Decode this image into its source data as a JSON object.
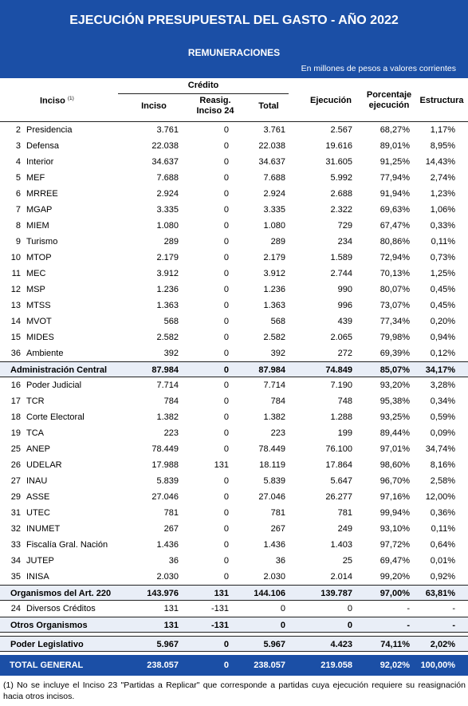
{
  "header": {
    "title": "EJECUCIÓN PRESUPUESTAL DEL GASTO -  AÑO 2022",
    "subtitle": "REMUNERACIONES",
    "note": "En millones de pesos a valores corrientes"
  },
  "columns": {
    "inciso": "Inciso",
    "inciso_sup": "(1)",
    "credito": "Crédito",
    "credito_inciso": "Inciso",
    "reasig_1": "Reasig.",
    "reasig_2": "Inciso 24",
    "total": "Total",
    "ejecucion": "Ejecución",
    "porcentaje_1": "Porcentaje",
    "porcentaje_2": "ejecución",
    "estructura": "Estructura"
  },
  "admin_central": [
    {
      "num": "2",
      "name": "Presidencia",
      "inciso": "3.761",
      "reasig": "0",
      "total": "3.761",
      "ejec": "2.567",
      "pct": "68,27%",
      "estr": "1,17%"
    },
    {
      "num": "3",
      "name": "Defensa",
      "inciso": "22.038",
      "reasig": "0",
      "total": "22.038",
      "ejec": "19.616",
      "pct": "89,01%",
      "estr": "8,95%"
    },
    {
      "num": "4",
      "name": "Interior",
      "inciso": "34.637",
      "reasig": "0",
      "total": "34.637",
      "ejec": "31.605",
      "pct": "91,25%",
      "estr": "14,43%"
    },
    {
      "num": "5",
      "name": "MEF",
      "inciso": "7.688",
      "reasig": "0",
      "total": "7.688",
      "ejec": "5.992",
      "pct": "77,94%",
      "estr": "2,74%"
    },
    {
      "num": "6",
      "name": "MRREE",
      "inciso": "2.924",
      "reasig": "0",
      "total": "2.924",
      "ejec": "2.688",
      "pct": "91,94%",
      "estr": "1,23%"
    },
    {
      "num": "7",
      "name": "MGAP",
      "inciso": "3.335",
      "reasig": "0",
      "total": "3.335",
      "ejec": "2.322",
      "pct": "69,63%",
      "estr": "1,06%"
    },
    {
      "num": "8",
      "name": "MIEM",
      "inciso": "1.080",
      "reasig": "0",
      "total": "1.080",
      "ejec": "729",
      "pct": "67,47%",
      "estr": "0,33%"
    },
    {
      "num": "9",
      "name": "Turismo",
      "inciso": "289",
      "reasig": "0",
      "total": "289",
      "ejec": "234",
      "pct": "80,86%",
      "estr": "0,11%"
    },
    {
      "num": "10",
      "name": "MTOP",
      "inciso": "2.179",
      "reasig": "0",
      "total": "2.179",
      "ejec": "1.589",
      "pct": "72,94%",
      "estr": "0,73%"
    },
    {
      "num": "11",
      "name": "MEC",
      "inciso": "3.912",
      "reasig": "0",
      "total": "3.912",
      "ejec": "2.744",
      "pct": "70,13%",
      "estr": "1,25%"
    },
    {
      "num": "12",
      "name": "MSP",
      "inciso": "1.236",
      "reasig": "0",
      "total": "1.236",
      "ejec": "990",
      "pct": "80,07%",
      "estr": "0,45%"
    },
    {
      "num": "13",
      "name": "MTSS",
      "inciso": "1.363",
      "reasig": "0",
      "total": "1.363",
      "ejec": "996",
      "pct": "73,07%",
      "estr": "0,45%"
    },
    {
      "num": "14",
      "name": "MVOT",
      "inciso": "568",
      "reasig": "0",
      "total": "568",
      "ejec": "439",
      "pct": "77,34%",
      "estr": "0,20%"
    },
    {
      "num": "15",
      "name": "MIDES",
      "inciso": "2.582",
      "reasig": "0",
      "total": "2.582",
      "ejec": "2.065",
      "pct": "79,98%",
      "estr": "0,94%"
    },
    {
      "num": "36",
      "name": "Ambiente",
      "inciso": "392",
      "reasig": "0",
      "total": "392",
      "ejec": "272",
      "pct": "69,39%",
      "estr": "0,12%"
    }
  ],
  "admin_central_total": {
    "name": "Administración Central",
    "inciso": "87.984",
    "reasig": "0",
    "total": "87.984",
    "ejec": "74.849",
    "pct": "85,07%",
    "estr": "34,17%"
  },
  "art220": [
    {
      "num": "16",
      "name": "Poder Judicial",
      "inciso": "7.714",
      "reasig": "0",
      "total": "7.714",
      "ejec": "7.190",
      "pct": "93,20%",
      "estr": "3,28%"
    },
    {
      "num": "17",
      "name": "TCR",
      "inciso": "784",
      "reasig": "0",
      "total": "784",
      "ejec": "748",
      "pct": "95,38%",
      "estr": "0,34%"
    },
    {
      "num": "18",
      "name": "Corte Electoral",
      "inciso": "1.382",
      "reasig": "0",
      "total": "1.382",
      "ejec": "1.288",
      "pct": "93,25%",
      "estr": "0,59%"
    },
    {
      "num": "19",
      "name": "TCA",
      "inciso": "223",
      "reasig": "0",
      "total": "223",
      "ejec": "199",
      "pct": "89,44%",
      "estr": "0,09%"
    },
    {
      "num": "25",
      "name": "ANEP",
      "inciso": "78.449",
      "reasig": "0",
      "total": "78.449",
      "ejec": "76.100",
      "pct": "97,01%",
      "estr": "34,74%"
    },
    {
      "num": "26",
      "name": "UDELAR",
      "inciso": "17.988",
      "reasig": "131",
      "total": "18.119",
      "ejec": "17.864",
      "pct": "98,60%",
      "estr": "8,16%"
    },
    {
      "num": "27",
      "name": "INAU",
      "inciso": "5.839",
      "reasig": "0",
      "total": "5.839",
      "ejec": "5.647",
      "pct": "96,70%",
      "estr": "2,58%"
    },
    {
      "num": "29",
      "name": "ASSE",
      "inciso": "27.046",
      "reasig": "0",
      "total": "27.046",
      "ejec": "26.277",
      "pct": "97,16%",
      "estr": "12,00%"
    },
    {
      "num": "31",
      "name": "UTEC",
      "inciso": "781",
      "reasig": "0",
      "total": "781",
      "ejec": "781",
      "pct": "99,94%",
      "estr": "0,36%"
    },
    {
      "num": "32",
      "name": "INUMET",
      "inciso": "267",
      "reasig": "0",
      "total": "267",
      "ejec": "249",
      "pct": "93,10%",
      "estr": "0,11%"
    },
    {
      "num": "33",
      "name": "Fiscalía Gral. Nación",
      "inciso": "1.436",
      "reasig": "0",
      "total": "1.436",
      "ejec": "1.403",
      "pct": "97,72%",
      "estr": "0,64%"
    },
    {
      "num": "34",
      "name": "JUTEP",
      "inciso": "36",
      "reasig": "0",
      "total": "36",
      "ejec": "25",
      "pct": "69,47%",
      "estr": "0,01%"
    },
    {
      "num": "35",
      "name": "INISA",
      "inciso": "2.030",
      "reasig": "0",
      "total": "2.030",
      "ejec": "2.014",
      "pct": "99,20%",
      "estr": "0,92%"
    }
  ],
  "art220_total": {
    "name": "Organismos del Art. 220",
    "inciso": "143.976",
    "reasig": "131",
    "total": "144.106",
    "ejec": "139.787",
    "pct": "97,00%",
    "estr": "63,81%"
  },
  "diversos": {
    "num": "24",
    "name": "Diversos Créditos",
    "inciso": "131",
    "reasig": "-131",
    "total": "0",
    "ejec": "0",
    "pct": "-",
    "estr": "-"
  },
  "otros": {
    "name": "Otros Organismos",
    "inciso": "131",
    "reasig": "-131",
    "total": "0",
    "ejec": "0",
    "pct": "-",
    "estr": "-"
  },
  "legislativo": {
    "name": "Poder Legislativo",
    "inciso": "5.967",
    "reasig": "0",
    "total": "5.967",
    "ejec": "4.423",
    "pct": "74,11%",
    "estr": "2,02%"
  },
  "total_general": {
    "name": "TOTAL GENERAL",
    "inciso": "238.057",
    "reasig": "0",
    "total": "238.057",
    "ejec": "219.058",
    "pct": "92,02%",
    "estr": "100,00%"
  },
  "footnote": "(1) No se incluye el Inciso 23 \"Partidas a Replicar\" que corresponde a partidas cuya ejecución requiere su reasignación hacia otros incisos."
}
